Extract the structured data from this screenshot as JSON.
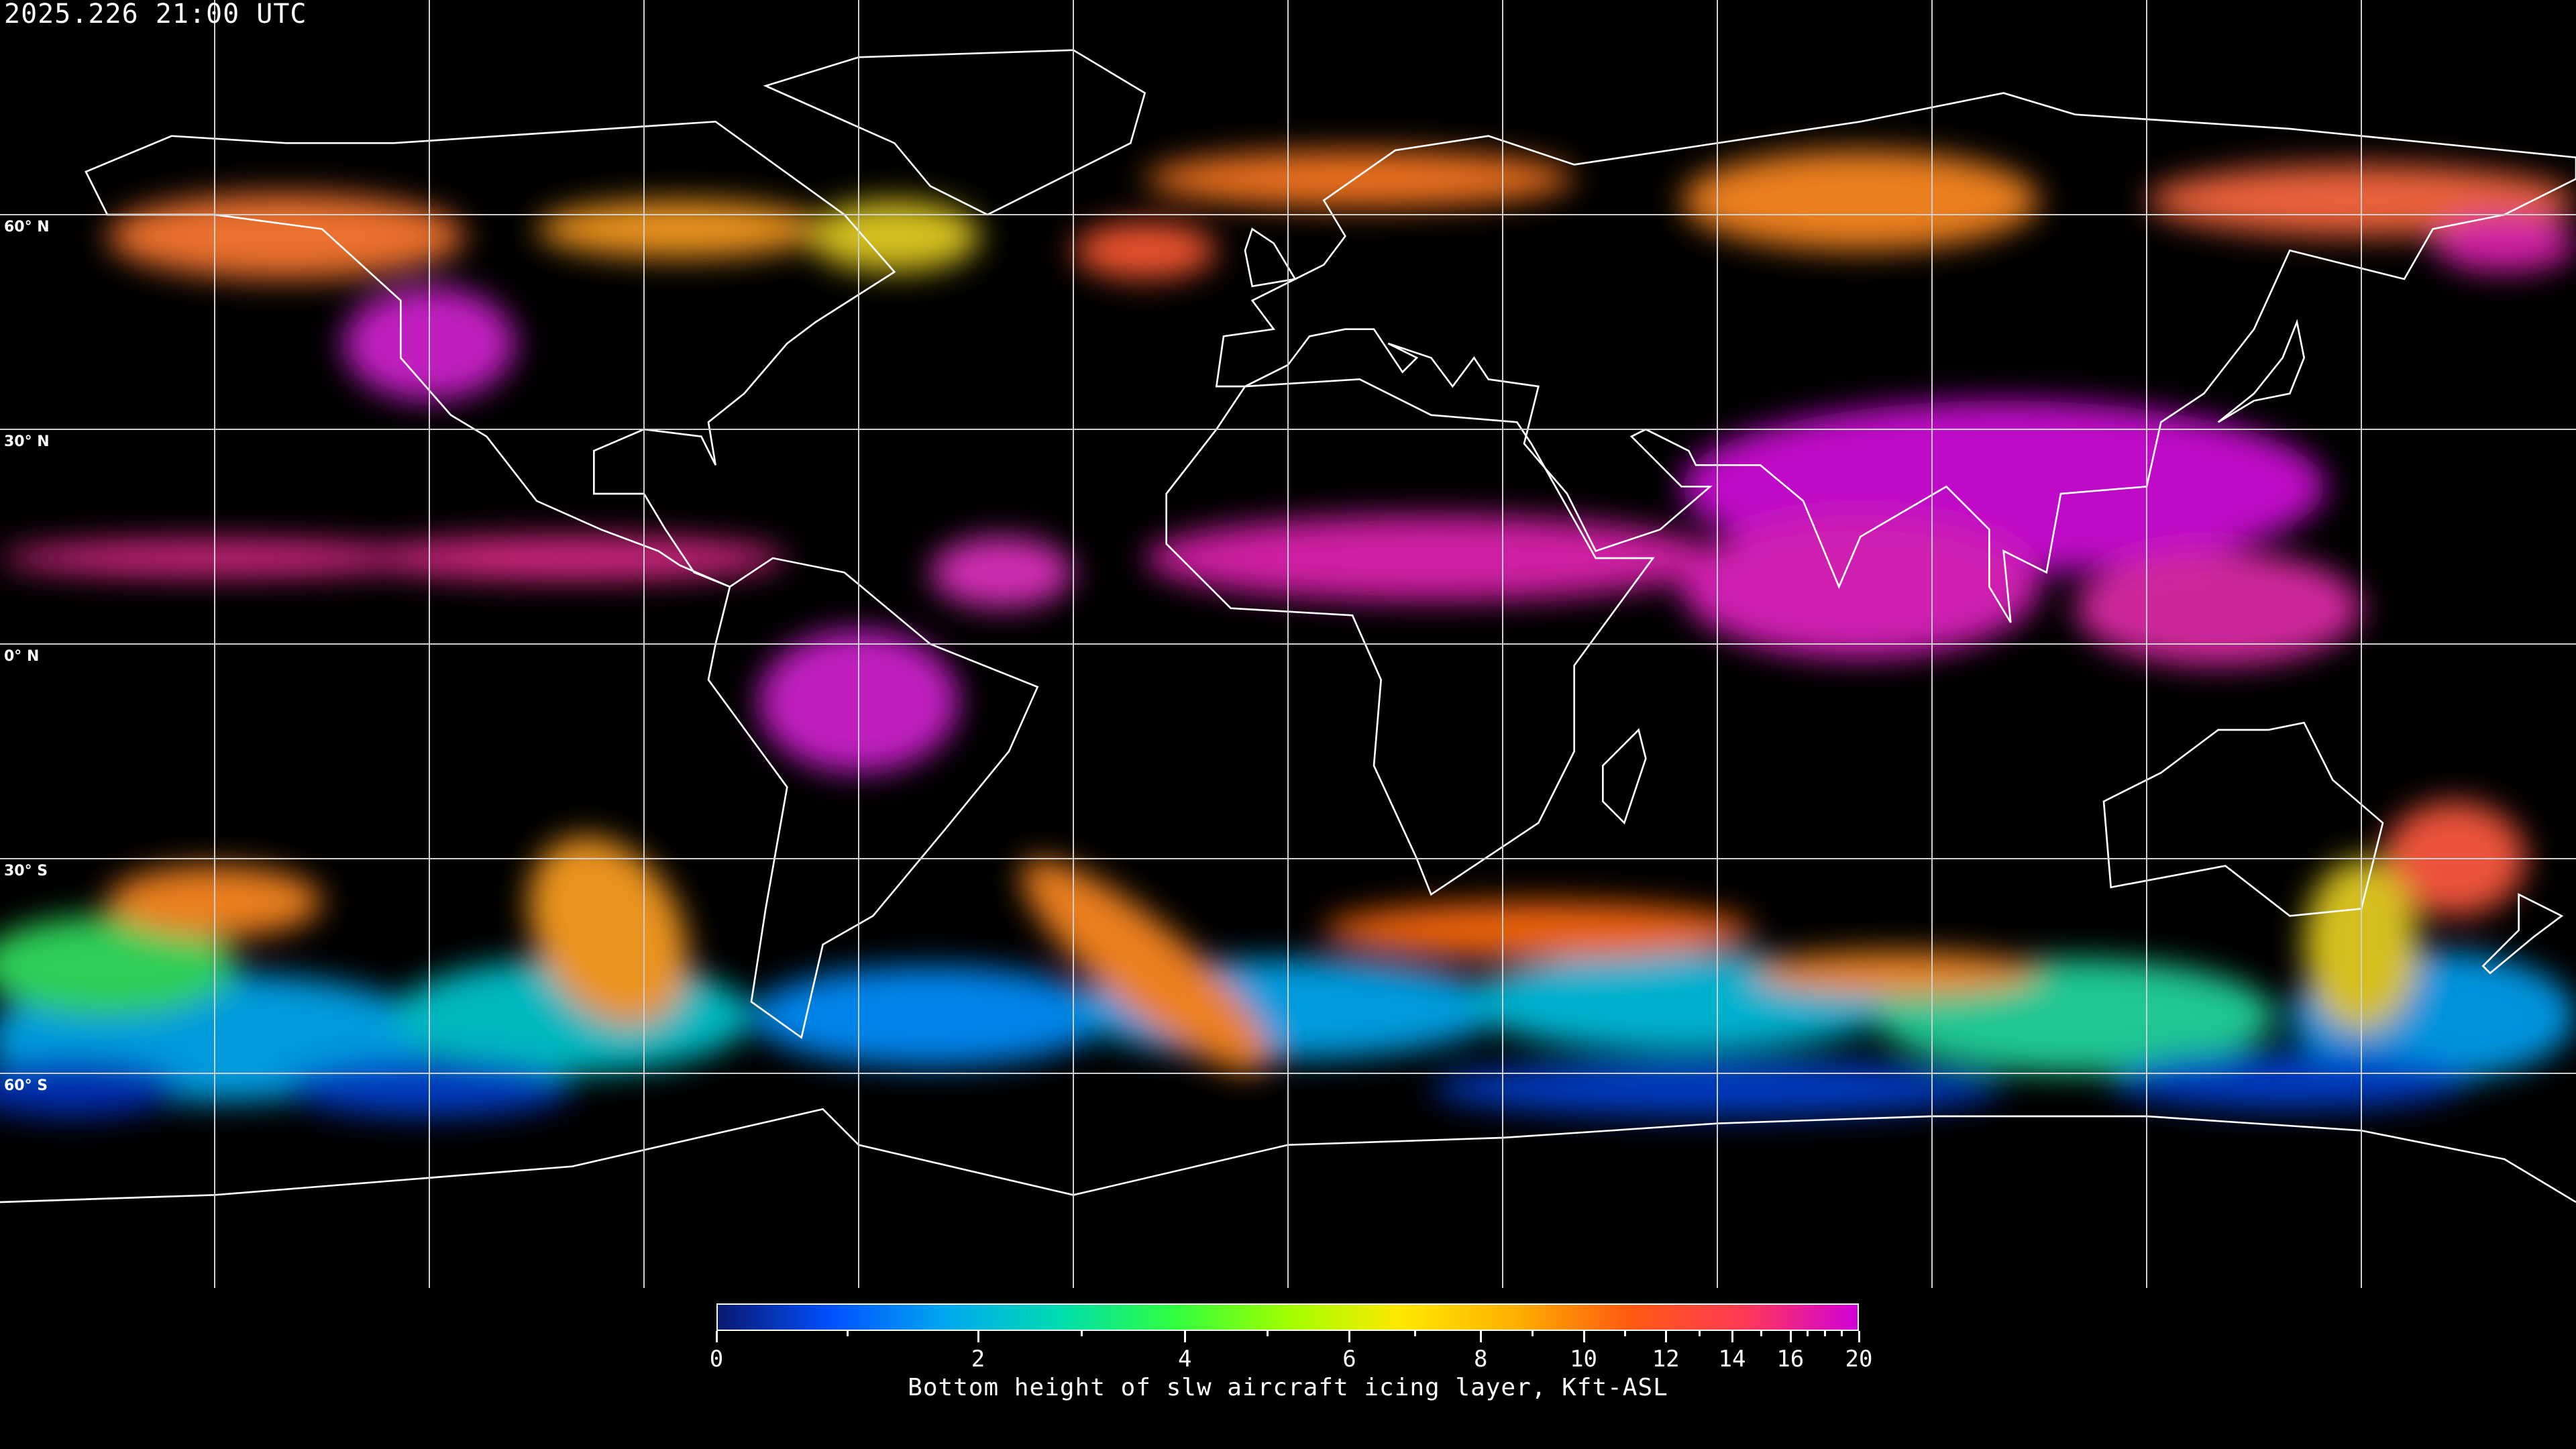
{
  "header": {
    "timestamp": "2025.226 21:00 UTC"
  },
  "map": {
    "projection": "equirectangular",
    "lon_range": [
      -180,
      180
    ],
    "lat_range": [
      -90,
      90
    ],
    "grid_spacing_deg": 30,
    "lat_labels": [
      "60° N",
      "30° N",
      "0° N",
      "30° S",
      "60° S"
    ],
    "coastline_color": "#ffffff",
    "grid_color": "#cccccc",
    "background_color": "#000000"
  },
  "colorbar": {
    "label": "Bottom height of slw aircraft icing layer, Kft-ASL",
    "range": [
      0,
      20
    ],
    "major_ticks": [
      "0",
      "2",
      "4",
      "6",
      "8",
      "10",
      "12",
      "14",
      "16",
      "20"
    ],
    "minor_ticks": [
      1,
      3,
      5,
      7,
      9,
      11,
      13,
      15,
      17,
      18,
      19
    ],
    "colormap": [
      "#0a1870",
      "#0050ff",
      "#00a8f0",
      "#00dcb0",
      "#30ff40",
      "#a0ff00",
      "#ffe800",
      "#ffb000",
      "#ff5a10",
      "#ff3a55",
      "#d000d8"
    ]
  }
}
